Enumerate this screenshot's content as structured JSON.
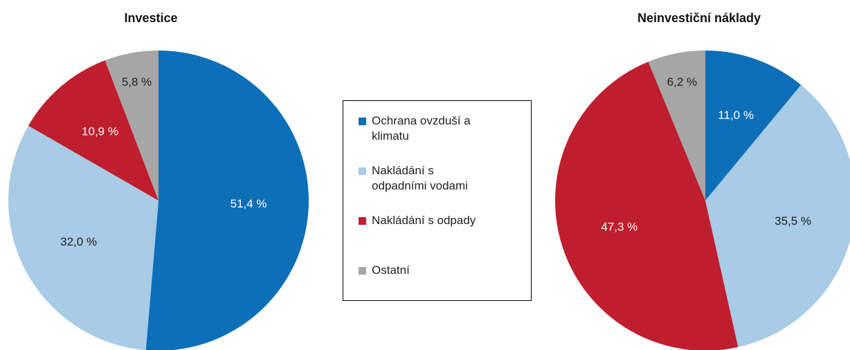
{
  "chart_data": [
    {
      "type": "pie",
      "title": "Investice",
      "values": [
        51.4,
        32.0,
        10.9,
        5.8
      ],
      "value_labels": [
        "51,4 %",
        "32,0 %",
        "10,9 %",
        "5,8 %"
      ]
    },
    {
      "type": "pie",
      "title": "Neinvestiční náklady",
      "values": [
        11.0,
        35.5,
        47.3,
        6.2
      ],
      "value_labels": [
        "11,0 %",
        "35,5 %",
        "47,3 %",
        "6,2 %"
      ]
    }
  ],
  "legend": {
    "categories": [
      "Ochrana ovzduší a klimatu",
      "Nakládání s odpadními vodami",
      "Nakládání s odpady",
      "Ostatní"
    ],
    "colors": [
      "#0d6fb8",
      "#a8cbe6",
      "#be1e2d",
      "#a6a6a6"
    ]
  }
}
